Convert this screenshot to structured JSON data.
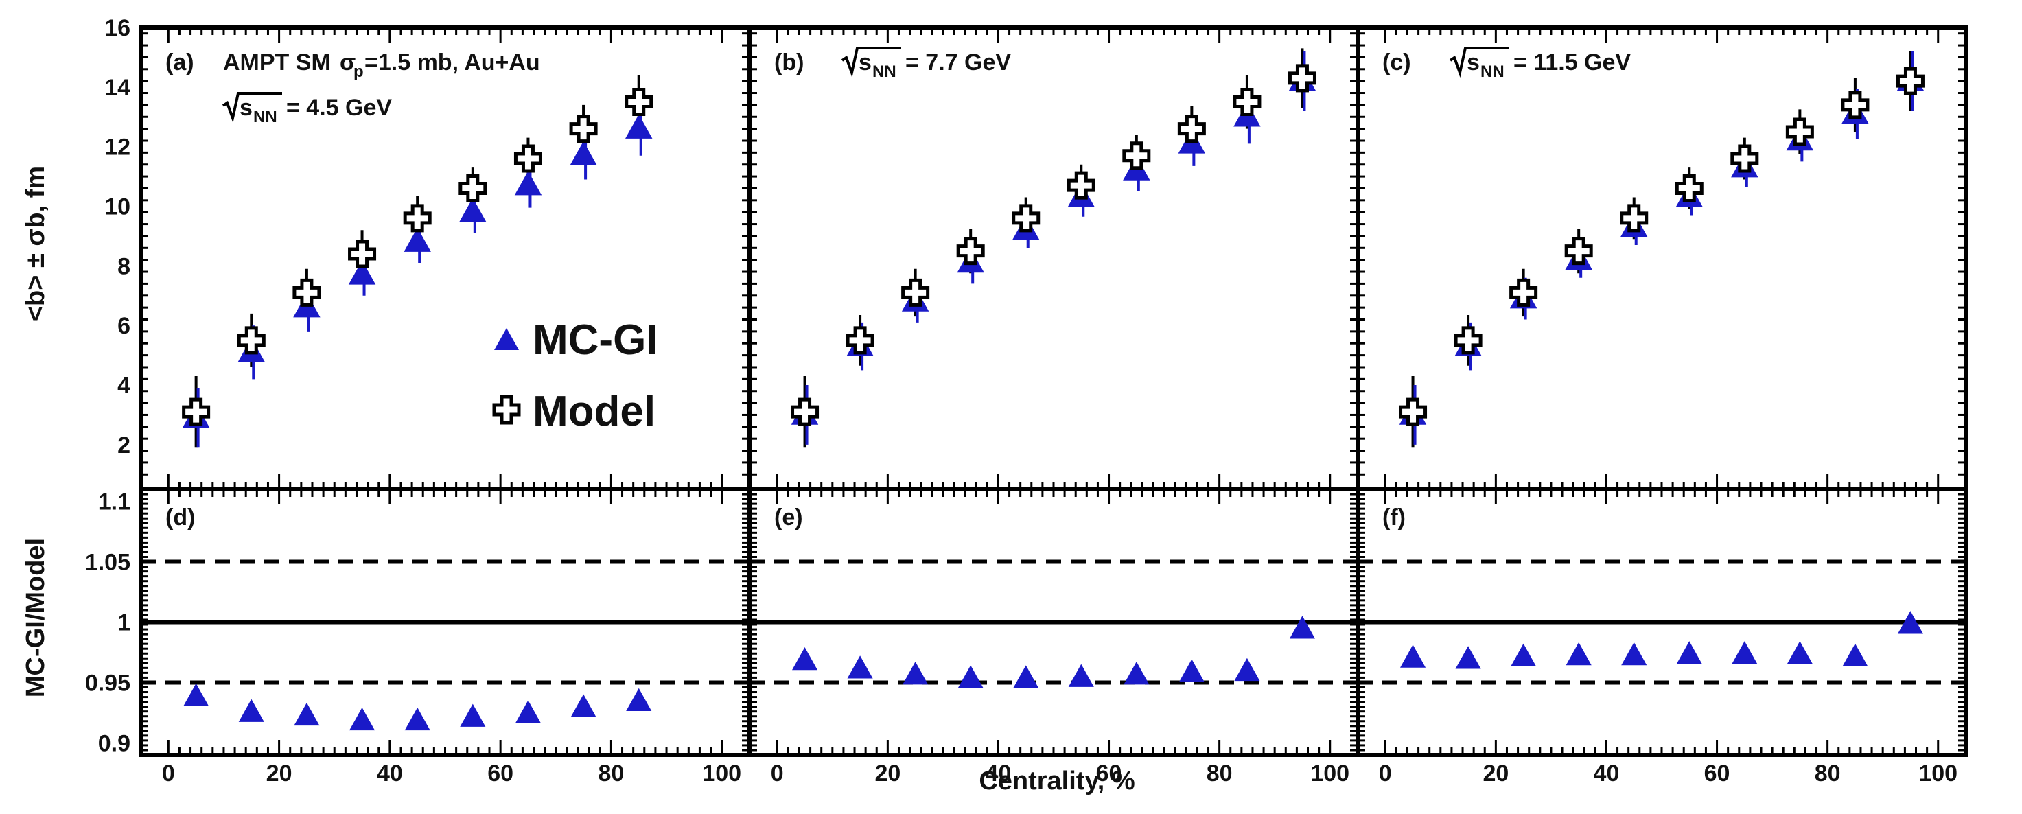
{
  "chart_data": {
    "type": "scatter",
    "x_label": "Centrality, %",
    "y_label_top": "<b> ± σb, fm",
    "y_label_bottom": "MC-GI/Model",
    "x_ticks": [
      "0",
      "20",
      "40",
      "60",
      "80",
      "100"
    ],
    "x_range": [
      -5,
      105
    ],
    "top_y_range": [
      0.5,
      16
    ],
    "top_y_ticks": [
      "2",
      "4",
      "6",
      "8",
      "10",
      "12",
      "14",
      "16"
    ],
    "bottom_y_range": [
      0.89,
      1.11
    ],
    "bottom_y_ticks": [
      "0.9",
      "0.95",
      "1",
      "1.05",
      "1.1"
    ],
    "reference_lines": [
      {
        "value": 1.0,
        "style": "solid"
      },
      {
        "value": 1.05,
        "style": "dashed"
      },
      {
        "value": 0.95,
        "style": "dashed"
      }
    ],
    "legend": [
      {
        "label": "MC-GI",
        "marker": "filled blue triangle",
        "color": "#1a1ac8"
      },
      {
        "label": "Model",
        "marker": "open cross",
        "color": "#000000"
      }
    ],
    "panels_top": [
      {
        "letter": "(a)",
        "title_line1": "AMPT SM",
        "sigma": "σ",
        "sigma_sub": "p",
        "title_line1_rest": "=1.5 mb, Au+Au",
        "sqrt_s": "s",
        "sqrt_sub": "NN",
        "energy": "= 4.5 GeV",
        "x": [
          5,
          15,
          25,
          35,
          45,
          55,
          65,
          75,
          85
        ],
        "model_mean": [
          3.1,
          5.5,
          7.1,
          8.4,
          9.6,
          10.6,
          11.6,
          12.6,
          13.5
        ],
        "model_sigma": [
          1.2,
          0.9,
          0.8,
          0.8,
          0.75,
          0.7,
          0.7,
          0.8,
          0.9
        ],
        "mcgi_mean": [
          2.9,
          5.1,
          6.6,
          7.7,
          8.8,
          9.8,
          10.7,
          11.7,
          12.6
        ],
        "mcgi_sigma": [
          1.0,
          0.9,
          0.8,
          0.7,
          0.7,
          0.7,
          0.75,
          0.8,
          0.9
        ]
      },
      {
        "letter": "(b)",
        "sqrt_s": "s",
        "sqrt_sub": "NN",
        "energy": "= 7.7 GeV",
        "x": [
          5,
          15,
          25,
          35,
          45,
          55,
          65,
          75,
          85,
          95
        ],
        "model_mean": [
          3.1,
          5.5,
          7.1,
          8.5,
          9.6,
          10.7,
          11.7,
          12.6,
          13.5,
          14.3
        ],
        "model_sigma": [
          1.2,
          0.85,
          0.8,
          0.75,
          0.7,
          0.7,
          0.7,
          0.75,
          0.9,
          1.0
        ],
        "mcgi_mean": [
          3.0,
          5.3,
          6.8,
          8.1,
          9.2,
          10.3,
          11.2,
          12.1,
          13.0,
          14.2
        ],
        "mcgi_sigma": [
          1.0,
          0.8,
          0.7,
          0.7,
          0.6,
          0.65,
          0.7,
          0.75,
          0.9,
          1.0
        ]
      },
      {
        "letter": "(c)",
        "sqrt_s": "s",
        "sqrt_sub": "NN",
        "energy": "= 11.5 GeV",
        "x": [
          5,
          15,
          25,
          35,
          45,
          55,
          65,
          75,
          85,
          95
        ],
        "model_mean": [
          3.1,
          5.5,
          7.1,
          8.5,
          9.6,
          10.6,
          11.6,
          12.5,
          13.4,
          14.2
        ],
        "model_sigma": [
          1.2,
          0.85,
          0.8,
          0.75,
          0.7,
          0.7,
          0.7,
          0.75,
          0.9,
          1.0
        ],
        "mcgi_mean": [
          3.0,
          5.3,
          6.9,
          8.2,
          9.3,
          10.3,
          11.3,
          12.2,
          13.1,
          14.2
        ],
        "mcgi_sigma": [
          1.0,
          0.8,
          0.7,
          0.6,
          0.6,
          0.6,
          0.65,
          0.7,
          0.85,
          1.0
        ]
      }
    ],
    "panels_bottom": [
      {
        "letter": "(d)",
        "x": [
          5,
          15,
          25,
          35,
          45,
          55,
          65,
          75,
          85
        ],
        "ratio": [
          0.938,
          0.925,
          0.922,
          0.918,
          0.918,
          0.921,
          0.924,
          0.929,
          0.934
        ]
      },
      {
        "letter": "(e)",
        "x": [
          5,
          15,
          25,
          35,
          45,
          55,
          65,
          75,
          85,
          95
        ],
        "ratio": [
          0.968,
          0.961,
          0.956,
          0.953,
          0.953,
          0.954,
          0.956,
          0.958,
          0.959,
          0.994
        ]
      },
      {
        "letter": "(f)",
        "x": [
          5,
          15,
          25,
          35,
          45,
          55,
          65,
          75,
          85,
          95
        ],
        "ratio": [
          0.97,
          0.969,
          0.971,
          0.972,
          0.972,
          0.973,
          0.973,
          0.973,
          0.971,
          0.998
        ]
      }
    ]
  }
}
